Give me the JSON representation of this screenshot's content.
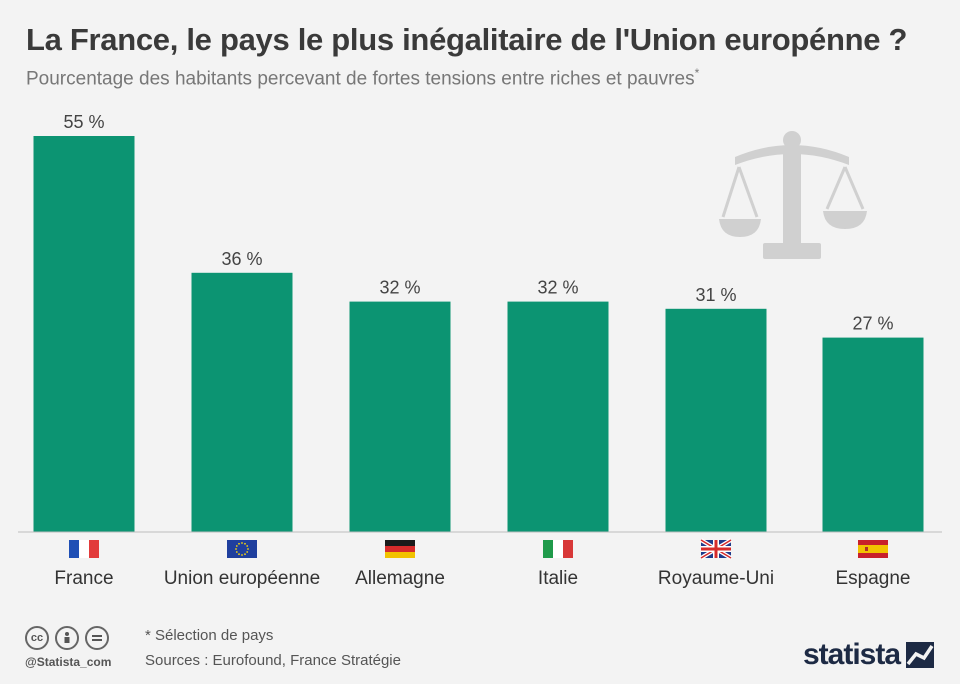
{
  "header": {
    "title": "La France, le pays le plus inégalitaire de l'Union europénne ?",
    "subtitle": "Pourcentage des habitants percevant de fortes tensions entre riches et pauvres",
    "subtitle_mark": "*"
  },
  "chart_data": {
    "type": "bar",
    "categories": [
      "France",
      "Union européenne",
      "Allemagne",
      "Italie",
      "Royaume-Uni",
      "Espagne"
    ],
    "values": [
      55,
      36,
      32,
      32,
      31,
      27
    ],
    "data_labels": [
      "55 %",
      "36 %",
      "32 %",
      "32 %",
      "31 %",
      "27 %"
    ],
    "unit": "%",
    "ylim": [
      0,
      55
    ],
    "grid": false,
    "bar_color": "#0c9472",
    "title": "La France, le pays le plus inégalitaire de l'Union europénne ?",
    "xlabel": "",
    "ylabel": ""
  },
  "flags": [
    "france-flag-icon",
    "eu-flag-icon",
    "germany-flag-icon",
    "italy-flag-icon",
    "uk-flag-icon",
    "spain-flag-icon"
  ],
  "decoration": {
    "icon": "scale-icon",
    "color": "#d0d0d0"
  },
  "footer": {
    "note": "* Sélection de pays",
    "sources": "Sources : Eurofound, France Stratégie",
    "handle": "@Statista_com",
    "brand": "statista",
    "license_icons": [
      "cc-icon",
      "by-icon",
      "nd-icon"
    ]
  },
  "colors": {
    "background": "#f3f3f3",
    "bar": "#0c9472",
    "brand": "#1d2a44"
  }
}
